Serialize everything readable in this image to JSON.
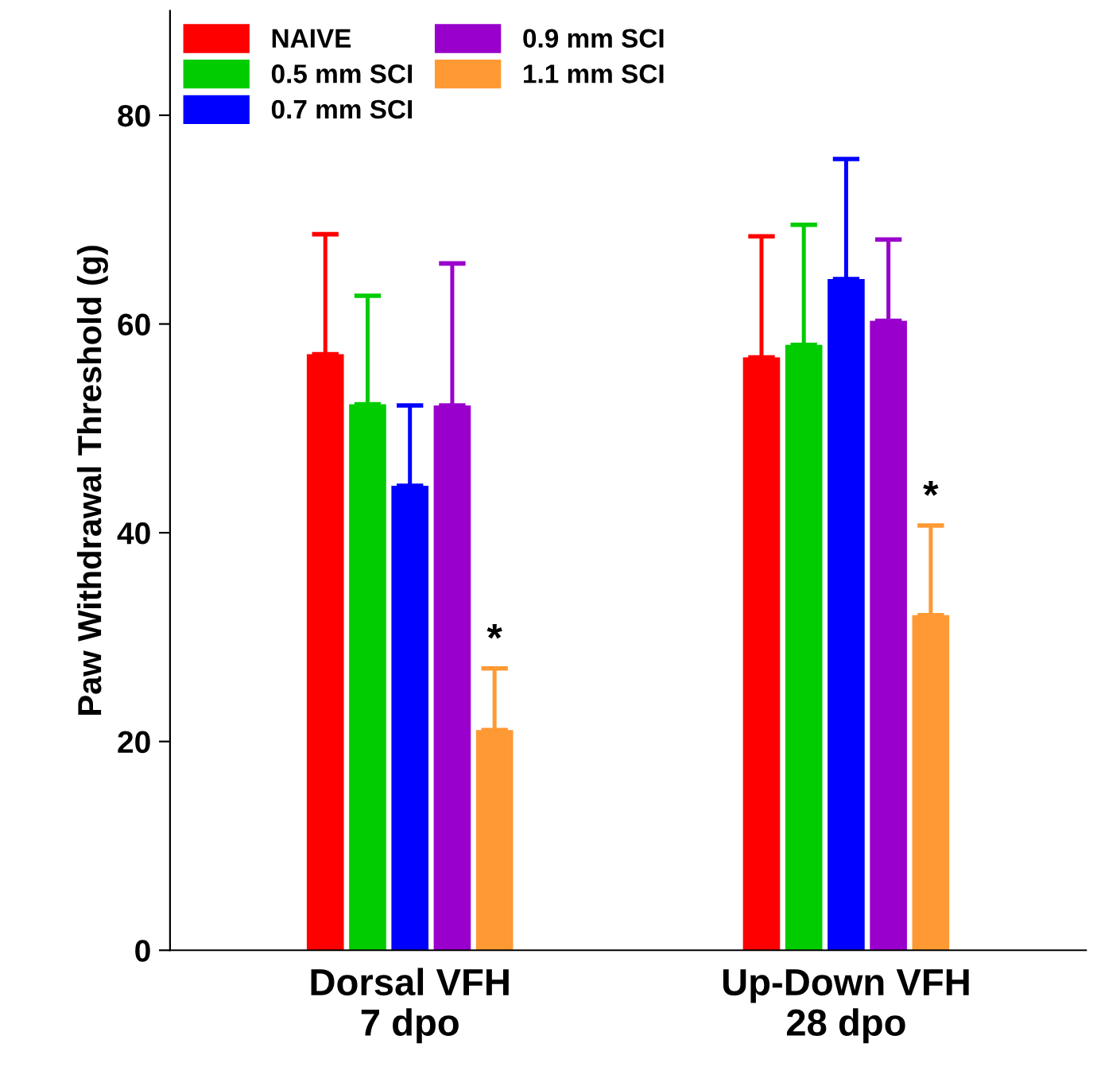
{
  "chart_data": {
    "type": "bar",
    "ylabel": "Paw Withdrawal Threshold (g)",
    "categories": [
      "Dorsal VFH\n7 dpo",
      "Up-Down VFH\n28 dpo"
    ],
    "series": [
      {
        "name": "NAIVE",
        "color": "#ff0000",
        "values": [
          57.1,
          56.8
        ],
        "errors": [
          [
            57.1,
            68.6
          ],
          [
            56.8,
            68.4
          ]
        ]
      },
      {
        "name": "0.5 mm SCI",
        "color": "#00cc00",
        "values": [
          52.3,
          58.0
        ],
        "errors": [
          [
            52.3,
            62.7
          ],
          [
            58.0,
            69.5
          ]
        ]
      },
      {
        "name": "0.7 mm SCI",
        "color": "#0000ff",
        "values": [
          44.5,
          64.3
        ],
        "errors": [
          [
            44.5,
            52.2
          ],
          [
            64.3,
            75.8
          ]
        ]
      },
      {
        "name": "0.9 mm SCI",
        "color": "#9900cc",
        "values": [
          52.2,
          60.3
        ],
        "errors": [
          [
            52.2,
            65.8
          ],
          [
            60.3,
            68.1
          ]
        ]
      },
      {
        "name": "1.1 mm SCI",
        "color": "#ff9933",
        "values": [
          21.1,
          32.1
        ],
        "errors": [
          [
            21.1,
            27.0
          ],
          [
            32.1,
            40.7
          ]
        ]
      }
    ],
    "annotations": [
      "*",
      "*"
    ],
    "ylim": [
      0,
      90
    ],
    "yticks": [
      0,
      20,
      40,
      60,
      80
    ],
    "grid": false,
    "legend": "top left"
  }
}
